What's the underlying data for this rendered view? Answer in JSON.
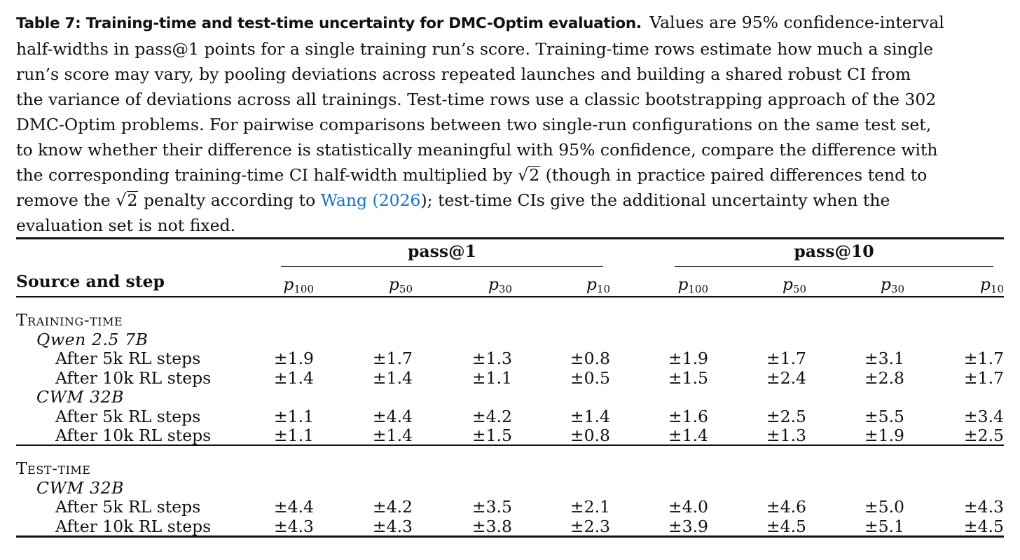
{
  "caption": {
    "label": "Table 7: Training-time and test-time uncertainty for DMC-Optim evaluation.",
    "line1_rest": "Values are 95% confidence-interval",
    "line2": "half-widths in pass@1 points for a single training run’s score. Training-time rows estimate how much a single",
    "line3": "run’s score may vary, by pooling deviations across repeated launches and building a shared robust CI from",
    "line4": "the variance of deviations across all trainings. Test-time rows use a classic bootstrapping approach of the 302",
    "line5": "DMC-Optim problems. For pairwise comparisons between two single-run configurations on the same test set,",
    "line6": "to know whether their difference is statistically meaningful with 95% confidence, compare the difference with",
    "line7_a": "the corresponding training-time CI half-width multiplied by",
    "sqrt_radicand": "2",
    "line7_b": "(though in practice paired differences tend to",
    "line8_a": "remove the",
    "line8_b": "penalty according to",
    "cite_author": "Wang",
    "cite_year": "2026",
    "line8_c": "); test-time CIs give the additional uncertainty when the",
    "line9": "evaluation set is not fixed."
  },
  "table": {
    "groups": [
      "pass@1",
      "pass@10"
    ],
    "row_header": "Source and step",
    "columns": [
      {
        "base": "p",
        "sub": "100"
      },
      {
        "base": "p",
        "sub": "50"
      },
      {
        "base": "p",
        "sub": "30"
      },
      {
        "base": "p",
        "sub": "10"
      },
      {
        "base": "p",
        "sub": "100"
      },
      {
        "base": "p",
        "sub": "50"
      },
      {
        "base": "p",
        "sub": "30"
      },
      {
        "base": "p",
        "sub": "10"
      }
    ],
    "sections": [
      {
        "title": "Training-time",
        "models": [
          {
            "name": "Qwen 2.5 7B",
            "rows": [
              {
                "label": "After 5k RL steps",
                "values": [
                  "±1.9",
                  "±1.7",
                  "±1.3",
                  "±0.8",
                  "±1.9",
                  "±1.7",
                  "±3.1",
                  "±1.7"
                ]
              },
              {
                "label": "After 10k RL steps",
                "values": [
                  "±1.4",
                  "±1.4",
                  "±1.1",
                  "±0.5",
                  "±1.5",
                  "±2.4",
                  "±2.8",
                  "±1.7"
                ]
              }
            ]
          },
          {
            "name": "CWM 32B",
            "rows": [
              {
                "label": "After 5k RL steps",
                "values": [
                  "±1.1",
                  "±4.4",
                  "±4.2",
                  "±1.4",
                  "±1.6",
                  "±2.5",
                  "±5.5",
                  "±3.4"
                ]
              },
              {
                "label": "After 10k RL steps",
                "values": [
                  "±1.1",
                  "±1.4",
                  "±1.5",
                  "±0.8",
                  "±1.4",
                  "±1.3",
                  "±1.9",
                  "±2.5"
                ]
              }
            ]
          }
        ]
      },
      {
        "title": "Test-time",
        "models": [
          {
            "name": "CWM 32B",
            "rows": [
              {
                "label": "After 5k RL steps",
                "values": [
                  "±4.4",
                  "±4.2",
                  "±3.5",
                  "±2.1",
                  "±4.0",
                  "±4.6",
                  "±5.0",
                  "±4.3"
                ]
              },
              {
                "label": "After 10k RL steps",
                "values": [
                  "±4.3",
                  "±4.3",
                  "±3.8",
                  "±2.3",
                  "±3.9",
                  "±4.5",
                  "±5.1",
                  "±4.5"
                ]
              }
            ]
          }
        ]
      }
    ]
  }
}
